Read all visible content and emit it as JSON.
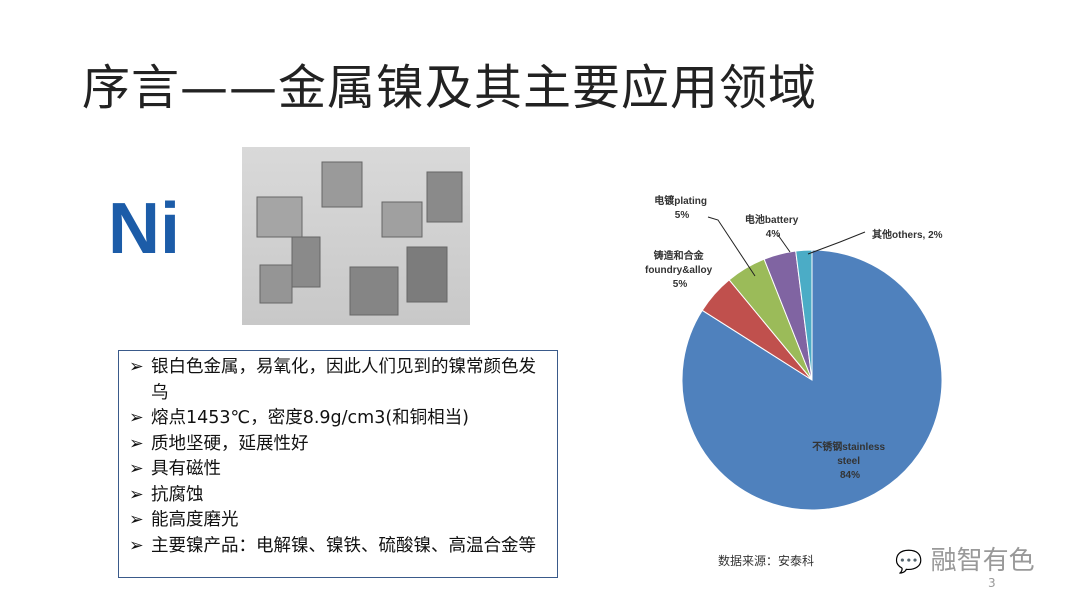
{
  "slide": {
    "title": "序言——金属镍及其主要应用领域",
    "element_symbol": "Ni",
    "bullets": [
      "银白色金属，易氧化，因此人们见到的镍常颜色发乌",
      "熔点1453℃，密度8.9g/cm3(和铜相当)",
      "质地坚硬，延展性好",
      "具有磁性",
      "抗腐蚀",
      "能高度磨光",
      "主要镍产品：电解镍、镍铁、硫酸镍、高温合金等"
    ],
    "source": "数据来源：安泰科",
    "watermark": "融智有色",
    "page_number": "3"
  },
  "chart_data": {
    "type": "pie",
    "slices": [
      {
        "label": "不锈钢stainless steel",
        "label_lines": [
          "不锈钢stainless",
          "steel",
          "84%"
        ],
        "value": 84,
        "color": "#4f81bd"
      },
      {
        "label": "铸造和合金foundry&alloy",
        "label_lines": [
          "铸造和合金",
          "foundry&alloy",
          "5%"
        ],
        "value": 5,
        "color": "#c0504d"
      },
      {
        "label": "电镀plating",
        "label_lines": [
          "电镀plating",
          "5%"
        ],
        "value": 5,
        "color": "#9bbb59"
      },
      {
        "label": "电池battery",
        "label_lines": [
          "电池battery",
          "4%"
        ],
        "value": 4,
        "color": "#8064a2"
      },
      {
        "label": "其他others",
        "label_lines": [
          "其他others, 2%"
        ],
        "value": 2,
        "color": "#4bacc6"
      }
    ]
  }
}
